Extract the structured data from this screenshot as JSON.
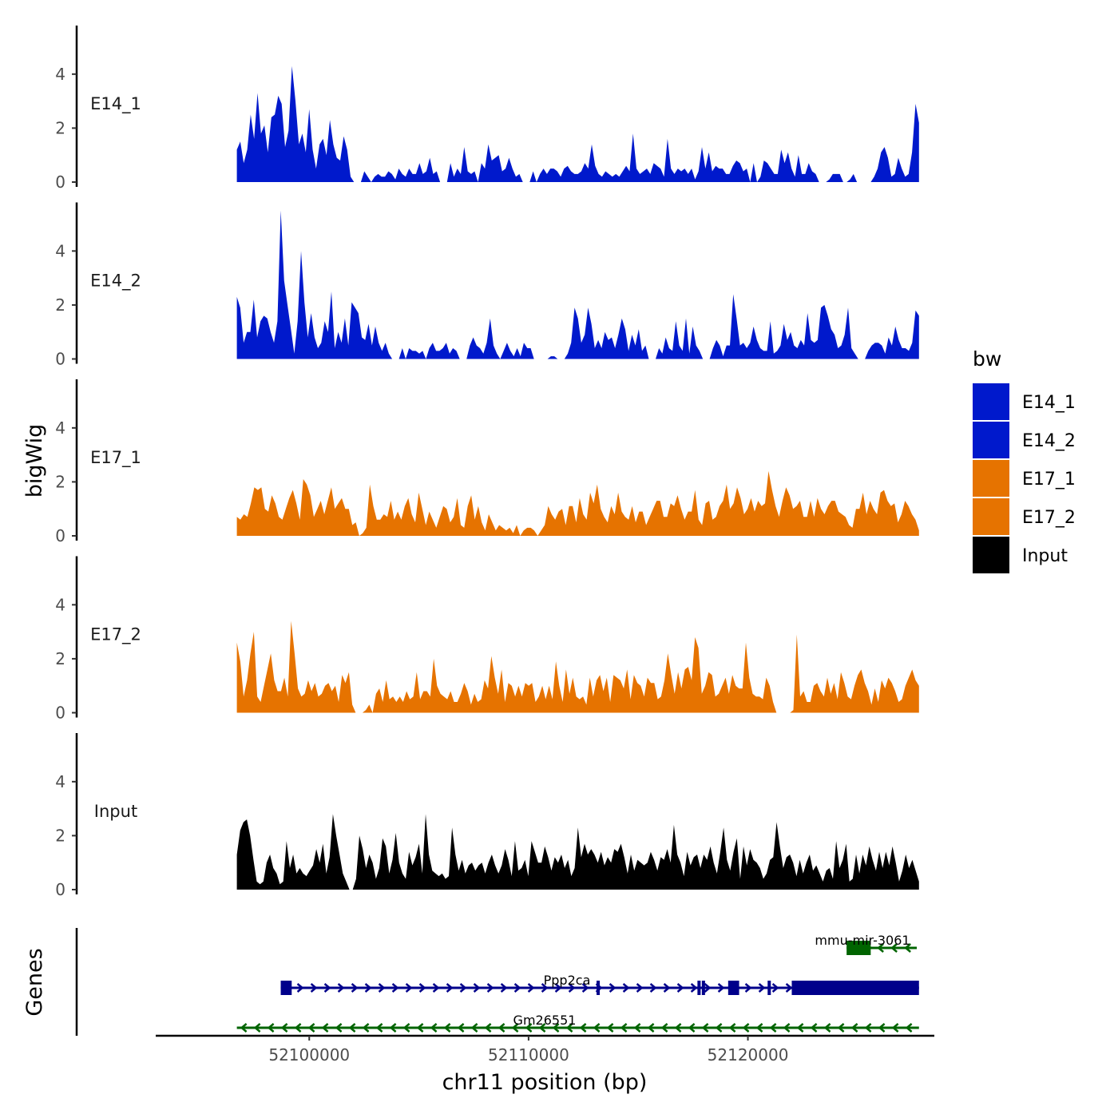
{
  "chart_data": {
    "type": "area",
    "xlabel": "chr11 position (bp)",
    "ylabel": "bigWig",
    "genes_label": "Genes",
    "xlim": [
      52093000,
      52128500
    ],
    "ylim": [
      0,
      5.8
    ],
    "y_ticks": [
      0,
      2,
      4
    ],
    "y_tick_labels": [
      "0",
      "2",
      "4"
    ],
    "x_ticks": [
      52100000,
      52110000,
      52120000
    ],
    "x_tick_labels": [
      "52100000",
      "52110000",
      "52120000"
    ],
    "track_start": 52096700,
    "track_end": 52127800,
    "legend": {
      "title": "bw",
      "entries": [
        {
          "label": "E14_1",
          "color": "#0019CC"
        },
        {
          "label": "E14_2",
          "color": "#0019CC"
        },
        {
          "label": "E17_1",
          "color": "#E67300"
        },
        {
          "label": "E17_2",
          "color": "#E67300"
        },
        {
          "label": "Input",
          "color": "#000000"
        }
      ]
    },
    "series": [
      {
        "name": "E14_1",
        "color": "#0019CC",
        "values": [
          1.2,
          1.5,
          0.7,
          1.2,
          2.5,
          1.6,
          3.3,
          1.8,
          2.1,
          1.1,
          2.4,
          2.5,
          3.2,
          2.9,
          1.3,
          1.9,
          4.3,
          3.0,
          1.4,
          1.8,
          1.1,
          2.7,
          1.2,
          0.5,
          1.4,
          1.6,
          1.0,
          2.3,
          1.4,
          0.9,
          0.8,
          1.7,
          1.2,
          0.2,
          0.0,
          0.0,
          0.0,
          0.4,
          0.2,
          0.0,
          0.2,
          0.3,
          0.2,
          0.2,
          0.4,
          0.3,
          0.1,
          0.5,
          0.3,
          0.2,
          0.5,
          0.3,
          0.3,
          0.7,
          0.3,
          0.4,
          0.9,
          0.3,
          0.4,
          0.0,
          0.0,
          0.0,
          0.7,
          0.2,
          0.5,
          0.3,
          1.3,
          0.4,
          0.3,
          0.4,
          0.0,
          0.7,
          0.5,
          1.4,
          0.8,
          0.9,
          1.0,
          0.4,
          0.5,
          0.9,
          0.5,
          0.2,
          0.3,
          0.0,
          0.0,
          0.0,
          0.4,
          0.0,
          0.3,
          0.5,
          0.3,
          0.5,
          0.5,
          0.4,
          0.2,
          0.5,
          0.6,
          0.4,
          0.3,
          0.3,
          0.4,
          0.7,
          0.5,
          1.4,
          0.6,
          0.3,
          0.2,
          0.4,
          0.3,
          0.2,
          0.3,
          0.2,
          0.4,
          0.6,
          0.4,
          1.8,
          0.5,
          0.3,
          0.4,
          0.5,
          0.3,
          0.7,
          0.6,
          0.5,
          0.2,
          1.6,
          0.5,
          0.3,
          0.5,
          0.4,
          0.5,
          0.3,
          0.5,
          0.1,
          0.4,
          1.3,
          0.5,
          1.1,
          0.4,
          0.6,
          0.5,
          0.5,
          0.3,
          0.3,
          0.6,
          0.8,
          0.7,
          0.4,
          0.5,
          0.0,
          0.7,
          0.0,
          0.2,
          0.8,
          0.7,
          0.5,
          0.3,
          0.3,
          1.2,
          0.7,
          1.1,
          0.5,
          0.2,
          1.0,
          0.3,
          0.3,
          0.7,
          0.4,
          0.3,
          0.0,
          0.0,
          0.0,
          0.1,
          0.3,
          0.3,
          0.3,
          0.0,
          0.0,
          0.1,
          0.3,
          0.0,
          0.0,
          0.0,
          0.0,
          0.0,
          0.2,
          0.5,
          1.1,
          1.3,
          0.9,
          0.2,
          0.3,
          0.9,
          0.5,
          0.2,
          0.3,
          1.1,
          2.9,
          2.2
        ]
      },
      {
        "name": "E14_2",
        "color": "#0019CC",
        "values": [
          2.3,
          1.9,
          0.6,
          1.0,
          1.0,
          2.2,
          0.8,
          1.4,
          1.6,
          1.5,
          1.0,
          0.6,
          1.4,
          5.5,
          2.9,
          2.0,
          1.1,
          0.2,
          1.4,
          4.0,
          2.1,
          0.8,
          1.7,
          0.8,
          0.4,
          0.6,
          1.4,
          1.0,
          2.5,
          0.4,
          1.0,
          0.6,
          1.5,
          0.5,
          2.1,
          1.9,
          1.7,
          0.8,
          0.7,
          1.3,
          0.5,
          1.2,
          0.6,
          0.3,
          0.6,
          0.2,
          0.0,
          0.0,
          0.0,
          0.4,
          0.0,
          0.4,
          0.3,
          0.3,
          0.2,
          0.3,
          0.0,
          0.4,
          0.6,
          0.3,
          0.3,
          0.4,
          0.6,
          0.2,
          0.4,
          0.3,
          0.0,
          0.0,
          0.0,
          0.5,
          0.8,
          0.5,
          0.4,
          0.2,
          0.6,
          1.5,
          0.5,
          0.2,
          0.0,
          0.3,
          0.6,
          0.3,
          0.1,
          0.4,
          0.1,
          0.6,
          0.4,
          0.4,
          0.0,
          0.0,
          0.0,
          0.0,
          0.0,
          0.1,
          0.1,
          0.0,
          0.0,
          0.0,
          0.2,
          0.6,
          1.9,
          1.5,
          0.6,
          0.9,
          1.9,
          1.3,
          0.4,
          0.7,
          0.4,
          1.0,
          0.7,
          0.8,
          0.4,
          0.9,
          1.5,
          1.1,
          0.3,
          0.9,
          0.5,
          1.1,
          0.3,
          0.5,
          0.0,
          0.0,
          0.0,
          0.4,
          0.2,
          0.8,
          0.4,
          0.3,
          1.4,
          0.5,
          0.3,
          1.5,
          0.2,
          1.2,
          0.5,
          0.3,
          0.0,
          0.0,
          0.0,
          0.4,
          0.7,
          0.5,
          0.1,
          0.5,
          0.5,
          2.4,
          1.5,
          0.5,
          0.6,
          0.4,
          0.6,
          1.2,
          0.7,
          0.4,
          0.3,
          0.3,
          1.4,
          0.2,
          0.3,
          0.5,
          1.3,
          0.7,
          1.0,
          0.5,
          0.4,
          0.7,
          0.5,
          1.7,
          0.7,
          0.6,
          0.7,
          1.9,
          2.0,
          1.6,
          1.1,
          0.9,
          0.4,
          0.5,
          0.9,
          1.9,
          0.4,
          0.2,
          0.0,
          0.0,
          0.0,
          0.3,
          0.5,
          0.6,
          0.6,
          0.5,
          0.2,
          0.8,
          0.5,
          1.2,
          0.7,
          0.4,
          0.4,
          0.3,
          0.6,
          1.8,
          1.6
        ]
      },
      {
        "name": "E17_1",
        "color": "#E67300",
        "values": [
          0.7,
          0.6,
          0.8,
          0.7,
          1.2,
          1.8,
          1.7,
          1.8,
          1.0,
          0.9,
          1.5,
          1.2,
          0.7,
          0.6,
          1.0,
          1.4,
          1.7,
          1.2,
          0.6,
          2.1,
          1.9,
          1.5,
          0.7,
          1.0,
          1.3,
          0.8,
          1.3,
          1.8,
          1.0,
          1.2,
          1.4,
          1.0,
          1.0,
          0.4,
          0.5,
          0.0,
          0.1,
          0.3,
          1.9,
          1.1,
          0.6,
          0.6,
          0.8,
          0.7,
          1.3,
          0.6,
          0.9,
          0.6,
          1.1,
          1.4,
          0.8,
          0.5,
          1.6,
          1.0,
          0.4,
          0.9,
          0.6,
          0.3,
          0.7,
          1.1,
          1.0,
          0.5,
          0.7,
          1.4,
          0.4,
          0.3,
          1.1,
          1.5,
          0.6,
          1.1,
          0.5,
          0.2,
          0.8,
          0.5,
          0.2,
          0.4,
          0.3,
          0.2,
          0.3,
          0.1,
          0.4,
          0.0,
          0.2,
          0.3,
          0.3,
          0.2,
          0.0,
          0.2,
          0.4,
          1.1,
          0.8,
          0.6,
          0.9,
          1.0,
          0.4,
          1.1,
          1.1,
          0.5,
          1.4,
          0.8,
          0.6,
          1.6,
          1.2,
          1.9,
          1.0,
          0.7,
          0.5,
          1.1,
          0.8,
          1.6,
          0.9,
          0.7,
          0.6,
          1.1,
          0.5,
          0.9,
          0.9,
          0.4,
          0.7,
          1.0,
          1.3,
          1.3,
          0.7,
          0.7,
          1.2,
          1.1,
          1.5,
          1.0,
          0.6,
          0.9,
          0.9,
          1.7,
          0.6,
          0.4,
          1.2,
          1.3,
          0.6,
          0.7,
          1.1,
          1.3,
          1.9,
          1.0,
          1.2,
          1.8,
          1.4,
          0.8,
          1.0,
          1.4,
          0.9,
          1.3,
          1.1,
          1.2,
          2.4,
          1.7,
          1.1,
          0.7,
          1.3,
          1.8,
          1.5,
          1.0,
          1.1,
          1.3,
          0.7,
          0.7,
          1.3,
          0.7,
          1.4,
          1.0,
          0.8,
          1.1,
          1.3,
          1.3,
          0.9,
          0.8,
          0.7,
          0.4,
          0.3,
          1.0,
          1.0,
          1.6,
          0.8,
          1.3,
          1.0,
          0.8,
          1.6,
          1.7,
          1.3,
          1.1,
          1.2,
          0.5,
          0.8,
          1.3,
          1.1,
          0.8,
          0.6,
          0.2
        ]
      },
      {
        "name": "E17_2",
        "color": "#E67300",
        "values": [
          2.6,
          1.9,
          0.6,
          1.2,
          2.2,
          3.0,
          0.6,
          0.4,
          1.0,
          1.6,
          2.2,
          1.2,
          0.8,
          0.8,
          1.3,
          0.6,
          3.4,
          2.2,
          0.9,
          0.6,
          0.7,
          1.2,
          0.8,
          1.1,
          0.6,
          0.7,
          1.0,
          1.1,
          0.8,
          1.0,
          0.4,
          1.4,
          1.1,
          1.5,
          0.3,
          0.0,
          0.0,
          0.0,
          0.1,
          0.3,
          0.0,
          0.7,
          0.9,
          0.4,
          1.2,
          0.5,
          0.6,
          0.4,
          0.6,
          0.4,
          0.8,
          0.5,
          0.6,
          1.5,
          0.5,
          0.8,
          0.8,
          0.6,
          2.0,
          1.0,
          0.7,
          0.6,
          0.5,
          0.8,
          0.4,
          0.4,
          0.7,
          1.1,
          0.8,
          0.3,
          0.7,
          0.4,
          0.5,
          1.2,
          0.9,
          2.1,
          1.3,
          0.7,
          1.6,
          0.4,
          1.1,
          1.0,
          0.6,
          1.0,
          0.6,
          1.1,
          1.0,
          1.1,
          0.4,
          0.6,
          1.0,
          0.5,
          1.0,
          0.5,
          1.9,
          1.0,
          0.4,
          1.6,
          0.7,
          1.3,
          0.6,
          0.5,
          0.6,
          0.3,
          1.3,
          0.6,
          1.2,
          1.4,
          0.8,
          1.3,
          0.4,
          1.4,
          1.3,
          1.2,
          0.9,
          1.6,
          0.5,
          1.4,
          1.1,
          1.0,
          0.6,
          1.3,
          1.1,
          1.1,
          0.5,
          0.6,
          1.2,
          2.2,
          1.4,
          0.7,
          1.5,
          0.9,
          1.6,
          1.7,
          1.2,
          2.8,
          2.4,
          0.7,
          1.0,
          1.5,
          1.4,
          0.6,
          0.7,
          1.0,
          1.3,
          0.7,
          1.4,
          1.0,
          0.9,
          0.9,
          2.6,
          1.3,
          0.7,
          0.6,
          0.6,
          0.5,
          1.3,
          1.0,
          0.4,
          0.0,
          0.0,
          0.0,
          0.0,
          0.0,
          0.1,
          2.9,
          0.6,
          0.8,
          0.4,
          0.4,
          1.0,
          1.1,
          0.8,
          0.6,
          1.3,
          0.7,
          1.1,
          0.5,
          1.5,
          1.1,
          0.6,
          0.5,
          1.0,
          1.4,
          1.6,
          1.1,
          0.8,
          0.3,
          0.9,
          0.4,
          1.2,
          0.9,
          1.3,
          1.1,
          0.8,
          0.4,
          0.5,
          1.0,
          1.3,
          1.6,
          1.2,
          1.0
        ]
      },
      {
        "name": "Input",
        "color": "#000000",
        "values": [
          1.3,
          2.2,
          2.5,
          2.6,
          2.0,
          1.1,
          0.3,
          0.2,
          0.3,
          1.0,
          1.3,
          0.8,
          0.6,
          0.2,
          0.3,
          1.8,
          0.8,
          1.3,
          0.6,
          0.8,
          0.6,
          0.5,
          0.7,
          0.9,
          1.5,
          1.0,
          1.7,
          0.6,
          1.2,
          2.8,
          2.0,
          1.3,
          0.6,
          0.3,
          0.0,
          0.0,
          0.4,
          2.0,
          1.5,
          0.8,
          1.3,
          1.0,
          0.4,
          0.8,
          1.9,
          1.6,
          0.6,
          1.1,
          2.1,
          1.0,
          0.6,
          0.4,
          1.4,
          0.9,
          1.2,
          1.7,
          0.6,
          2.8,
          1.3,
          0.7,
          0.6,
          0.5,
          0.6,
          0.4,
          0.5,
          2.3,
          1.3,
          0.7,
          1.1,
          0.6,
          0.9,
          1.0,
          0.7,
          0.9,
          1.0,
          0.6,
          1.0,
          1.3,
          0.9,
          0.6,
          0.9,
          1.5,
          1.1,
          0.5,
          1.8,
          0.7,
          0.8,
          1.1,
          0.5,
          1.8,
          1.4,
          1.0,
          1.0,
          1.6,
          1.2,
          0.7,
          1.2,
          1.0,
          1.3,
          0.8,
          1.1,
          0.5,
          0.8,
          2.3,
          1.2,
          1.7,
          1.3,
          1.5,
          1.3,
          1.0,
          1.4,
          0.9,
          1.2,
          1.0,
          1.5,
          1.4,
          1.7,
          1.2,
          0.6,
          1.3,
          0.7,
          1.1,
          1.0,
          0.9,
          1.0,
          1.4,
          1.1,
          0.7,
          1.2,
          1.1,
          1.5,
          1.0,
          2.4,
          1.3,
          1.0,
          0.5,
          1.4,
          0.9,
          1.2,
          1.3,
          0.8,
          1.3,
          1.1,
          1.6,
          1.0,
          0.6,
          1.4,
          2.3,
          1.1,
          0.7,
          1.4,
          1.9,
          0.4,
          1.6,
          0.9,
          1.5,
          1.1,
          1.0,
          0.8,
          0.4,
          0.6,
          1.1,
          1.2,
          2.5,
          1.6,
          0.8,
          1.2,
          1.3,
          1.0,
          0.5,
          1.1,
          0.6,
          1.0,
          1.3,
          0.7,
          0.9,
          0.6,
          0.3,
          0.7,
          0.8,
          0.4,
          1.8,
          0.8,
          1.1,
          1.7,
          0.3,
          0.4,
          1.3,
          0.6,
          1.3,
          0.9,
          1.6,
          1.1,
          0.7,
          1.4,
          0.8,
          1.4,
          0.9,
          1.6,
          1.0,
          0.3,
          0.7,
          1.3,
          0.8,
          1.1,
          0.7,
          0.3
        ]
      }
    ],
    "genes": [
      {
        "name": "mmu-mir-3061",
        "color": "#006400",
        "strand": "-",
        "start": 52124500,
        "end": 52127700,
        "exons": [
          [
            52124500,
            52125600
          ]
        ]
      },
      {
        "name": "Ppp2ca",
        "color": "#00008B",
        "strand": "+",
        "start": 52098700,
        "end": 52127800,
        "exons": [
          [
            52098700,
            52099200
          ],
          [
            52113100,
            52113200
          ],
          [
            52117700,
            52117800
          ],
          [
            52117900,
            52118000
          ],
          [
            52119100,
            52119600
          ],
          [
            52120900,
            52121000
          ],
          [
            52122000,
            52127800
          ]
        ]
      },
      {
        "name": "Gm26551",
        "color": "#006400",
        "strand": "-",
        "start": 52096700,
        "end": 52127800,
        "exons": []
      }
    ]
  }
}
